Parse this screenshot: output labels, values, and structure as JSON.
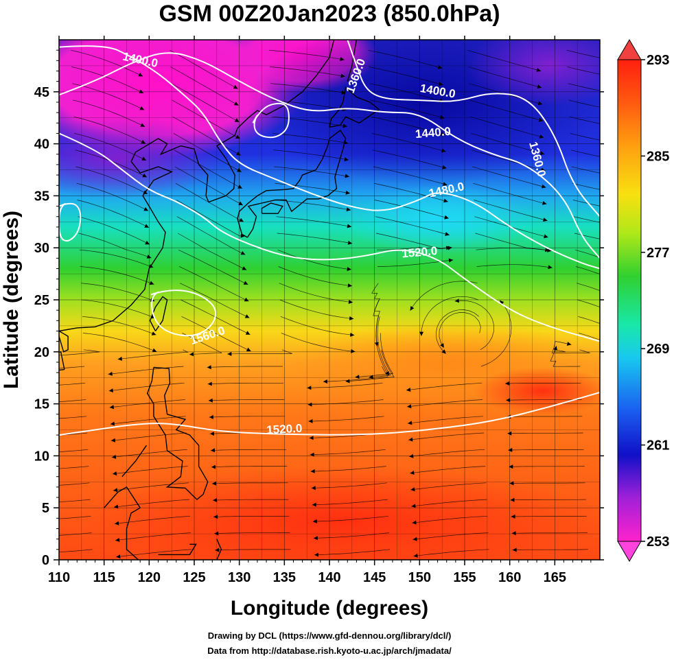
{
  "title": "GSM 00Z20Jan2023 (850.0hPa)",
  "xlabel": "Longitude (degrees)",
  "ylabel": "Latitude  (degrees)",
  "credit_line1": "Drawing by DCL (https://www.gfd-dennou.org/library/dcl/)",
  "credit_line2": "Data from http://database.rish.kyoto-u.ac.jp/arch/jmadata/",
  "chart_data": {
    "type": "heatmap",
    "xlim": [
      110,
      170
    ],
    "ylim": [
      0,
      50
    ],
    "x_ticks": [
      "110",
      "115",
      "120",
      "125",
      "130",
      "135",
      "140",
      "145",
      "150",
      "155",
      "160",
      "165"
    ],
    "y_ticks": [
      "0",
      "5",
      "10",
      "15",
      "20",
      "25",
      "30",
      "35",
      "40",
      "45"
    ],
    "grid": true,
    "colorbar": {
      "ticks": [
        "253",
        "261",
        "269",
        "277",
        "285",
        "293"
      ],
      "range": [
        253,
        293
      ],
      "placement": "right",
      "colors": [
        "#ff22cc",
        "#a020d8",
        "#1010c8",
        "#1a5cf0",
        "#18c8f0",
        "#18e8a8",
        "#30d030",
        "#b0e818",
        "#f8e010",
        "#ffa010",
        "#ff5a10",
        "#ff2010"
      ]
    },
    "contour_labels": [
      {
        "text": "1400.0",
        "lon": 119,
        "lat": 48
      },
      {
        "text": "1360.0",
        "lon": 143,
        "lat": 46.5
      },
      {
        "text": "1400.0",
        "lon": 152,
        "lat": 45
      },
      {
        "text": "1440.0",
        "lon": 151.5,
        "lat": 41
      },
      {
        "text": "1360.0",
        "lon": 163,
        "lat": 38.5
      },
      {
        "text": "1480.0",
        "lon": 153,
        "lat": 35.5
      },
      {
        "text": "1520.0",
        "lon": 150,
        "lat": 29.5
      },
      {
        "text": "1560.0",
        "lon": 126.5,
        "lat": 21.5
      },
      {
        "text": "1520.0",
        "lon": 135,
        "lat": 12.5
      }
    ],
    "contour_lines": [
      [
        [
          110,
          49.3
        ],
        [
          115,
          49.6
        ],
        [
          118,
          48.4
        ],
        [
          121,
          46.8
        ],
        [
          124,
          44.6
        ],
        [
          126,
          43
        ],
        [
          128,
          40
        ],
        [
          130,
          38
        ],
        [
          134,
          36.6
        ],
        [
          138,
          35.2
        ],
        [
          142,
          34
        ],
        [
          146,
          33.4
        ],
        [
          150,
          34.6
        ],
        [
          152,
          35.5
        ],
        [
          156,
          34.5
        ],
        [
          160,
          32
        ],
        [
          164,
          30
        ],
        [
          168,
          28.5
        ],
        [
          170,
          28
        ]
      ],
      [
        [
          110,
          41
        ],
        [
          114,
          39.5
        ],
        [
          117,
          37.5
        ],
        [
          120,
          35.5
        ],
        [
          123,
          34.5
        ],
        [
          126,
          33
        ],
        [
          128,
          31.5
        ],
        [
          132,
          30
        ],
        [
          136,
          29
        ],
        [
          140,
          28.8
        ],
        [
          144,
          29.2
        ],
        [
          148,
          30
        ],
        [
          152,
          29
        ],
        [
          155,
          27
        ],
        [
          160,
          24
        ],
        [
          164,
          22.5
        ],
        [
          170,
          21
        ]
      ],
      [
        [
          110,
          44.7
        ],
        [
          114,
          46
        ],
        [
          118,
          47.8
        ],
        [
          122,
          49
        ],
        [
          126,
          48
        ],
        [
          130,
          46
        ],
        [
          134,
          44.2
        ],
        [
          138,
          43
        ],
        [
          142,
          43.5
        ],
        [
          146,
          43
        ],
        [
          150,
          43
        ],
        [
          154,
          40.5
        ],
        [
          158,
          39
        ],
        [
          162,
          38
        ],
        [
          166,
          35
        ],
        [
          168,
          31
        ],
        [
          170,
          29
        ]
      ],
      [
        [
          142,
          50
        ],
        [
          143,
          47.5
        ],
        [
          144,
          45.2
        ],
        [
          146,
          44.3
        ],
        [
          150,
          44.2
        ],
        [
          154,
          44
        ],
        [
          158,
          45
        ],
        [
          162,
          44.5
        ],
        [
          165,
          41
        ],
        [
          167,
          36
        ],
        [
          170,
          33
        ]
      ],
      [
        [
          110,
          12
        ],
        [
          114,
          12.5
        ],
        [
          118,
          13
        ],
        [
          122,
          13.2
        ],
        [
          128,
          12.3
        ],
        [
          134,
          12.1
        ],
        [
          140,
          12
        ],
        [
          146,
          12.1
        ],
        [
          152,
          12.6
        ],
        [
          158,
          13.3
        ],
        [
          164,
          14.6
        ],
        [
          170,
          16.1
        ]
      ]
    ],
    "closed_contours": [
      [
        [
          131.5,
          42
        ],
        [
          132.5,
          43.5
        ],
        [
          134.5,
          44
        ],
        [
          135.5,
          43.5
        ],
        [
          135.5,
          41.5
        ],
        [
          134,
          40.5
        ],
        [
          132,
          40.8
        ]
      ],
      [
        [
          120.2,
          25.5
        ],
        [
          122,
          26
        ],
        [
          125,
          25.8
        ],
        [
          127.5,
          24.4
        ],
        [
          127.2,
          22.6
        ],
        [
          125,
          21.4
        ],
        [
          122,
          21.8
        ],
        [
          120.4,
          23.2
        ]
      ],
      [
        [
          110,
          34
        ],
        [
          111.5,
          34.5
        ],
        [
          112.5,
          33.5
        ],
        [
          112.2,
          31.5
        ],
        [
          111,
          30.5
        ],
        [
          110,
          31
        ]
      ]
    ]
  }
}
